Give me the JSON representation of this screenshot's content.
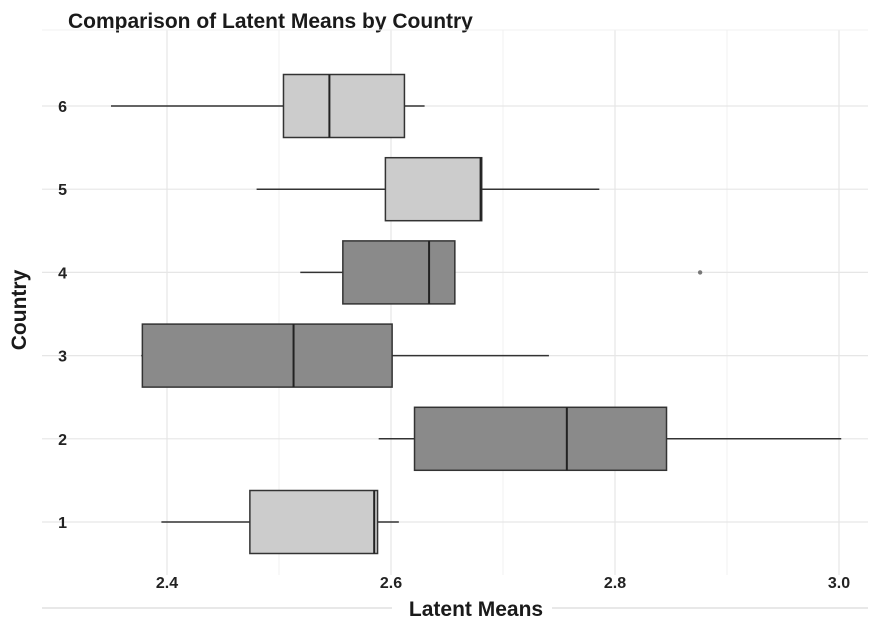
{
  "chart_data": {
    "type": "boxplot",
    "title": "Comparison of Latent Means by Country",
    "xlabel": "Latent Means",
    "ylabel": "Country",
    "xlim": [
      2.33,
      3.03
    ],
    "xticks": [
      "2.4",
      "2.6",
      "2.8",
      "3.0"
    ],
    "grid": true,
    "colors": {
      "light": "#cccccc",
      "dark": "#8a8a8a",
      "stroke": "#333333",
      "grid": "#e6e6e6"
    },
    "boxes": [
      {
        "category": "1",
        "whisker_low": 2.395,
        "q1": 2.474,
        "median": 2.585,
        "q3": 2.588,
        "whisker_high": 2.607,
        "outliers": [],
        "shade": "light"
      },
      {
        "category": "2",
        "whisker_low": 2.589,
        "q1": 2.621,
        "median": 2.757,
        "q3": 2.846,
        "whisker_high": 3.002,
        "outliers": [],
        "shade": "dark"
      },
      {
        "category": "3",
        "whisker_low": 2.377,
        "q1": 2.378,
        "median": 2.513,
        "q3": 2.601,
        "whisker_high": 2.741,
        "outliers": [],
        "shade": "dark"
      },
      {
        "category": "4",
        "whisker_low": 2.519,
        "q1": 2.557,
        "median": 2.634,
        "q3": 2.657,
        "whisker_high": 2.657,
        "outliers": [
          2.876
        ],
        "shade": "dark"
      },
      {
        "category": "5",
        "whisker_low": 2.48,
        "q1": 2.595,
        "median": 2.68,
        "q3": 2.681,
        "whisker_high": 2.786,
        "outliers": [],
        "shade": "light"
      },
      {
        "category": "6",
        "whisker_low": 2.35,
        "q1": 2.504,
        "median": 2.545,
        "q3": 2.612,
        "whisker_high": 2.63,
        "outliers": [],
        "shade": "light"
      }
    ]
  }
}
